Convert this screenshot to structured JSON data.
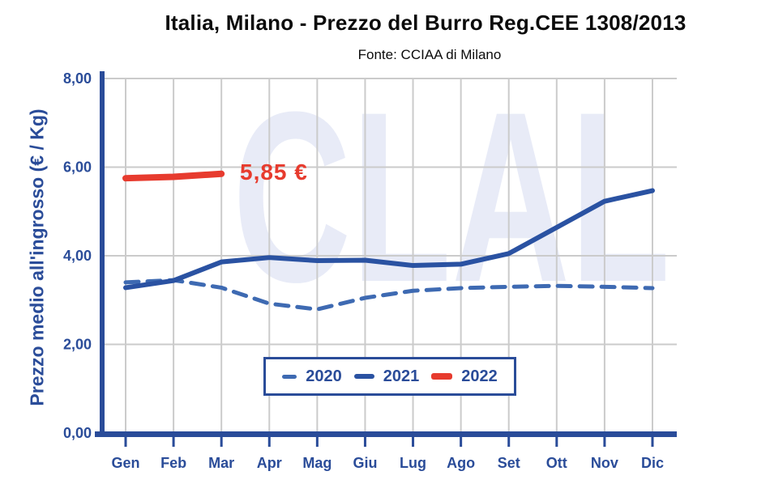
{
  "page": {
    "title": "Italia, Milano - Prezzo del Burro Reg.CEE 1308/2013",
    "subtitle": "Fonte: CCIAA di Milano"
  },
  "watermark": "CLAL",
  "colors": {
    "axis_blue": "#2a4c99",
    "grid_gray": "#cbcbcb",
    "watermark_lavender": "#e8ebf7",
    "series_2020": "#3e6ab2",
    "series_2021": "#2a52a2",
    "series_2022": "#e73b2e",
    "annotation_red": "#e73b2e",
    "title_black": "#0b0b0b"
  },
  "chart_data": {
    "type": "line",
    "title": "Italia, Milano - Prezzo del Burro Reg.CEE 1308/2013",
    "subtitle": "Fonte: CCIAA di Milano",
    "xlabel": "",
    "ylabel": "Prezzo medio all'ingrosso (€ / Kg)",
    "ylim": [
      0,
      8
    ],
    "grid": true,
    "legend_position": "bottom-center-inside",
    "categories": [
      "Gen",
      "Feb",
      "Mar",
      "Apr",
      "Mag",
      "Giu",
      "Lug",
      "Ago",
      "Set",
      "Ott",
      "Nov",
      "Dic"
    ],
    "y_ticks": [
      {
        "value": 0,
        "label": "0,00"
      },
      {
        "value": 2,
        "label": "2,00"
      },
      {
        "value": 4,
        "label": "4,00"
      },
      {
        "value": 6,
        "label": "6,00"
      },
      {
        "value": 8,
        "label": "8,00"
      }
    ],
    "series": [
      {
        "name": "2020",
        "style": "dashed",
        "color": "#3e6ab2",
        "values": [
          3.4,
          3.45,
          3.28,
          2.92,
          2.79,
          3.05,
          3.21,
          3.27,
          3.3,
          3.32,
          3.3,
          3.27
        ]
      },
      {
        "name": "2021",
        "style": "solid",
        "color": "#2a52a2",
        "values": [
          3.28,
          3.44,
          3.86,
          3.96,
          3.89,
          3.9,
          3.78,
          3.81,
          4.05,
          4.64,
          5.23,
          5.47
        ]
      },
      {
        "name": "2022",
        "style": "solid-thick",
        "color": "#e73b2e",
        "values": [
          5.75,
          5.78,
          5.85,
          null,
          null,
          null,
          null,
          null,
          null,
          null,
          null,
          null
        ]
      }
    ],
    "annotation": {
      "text": "5,85 €",
      "series": "2022",
      "month": "Mar",
      "value": 5.85
    }
  }
}
